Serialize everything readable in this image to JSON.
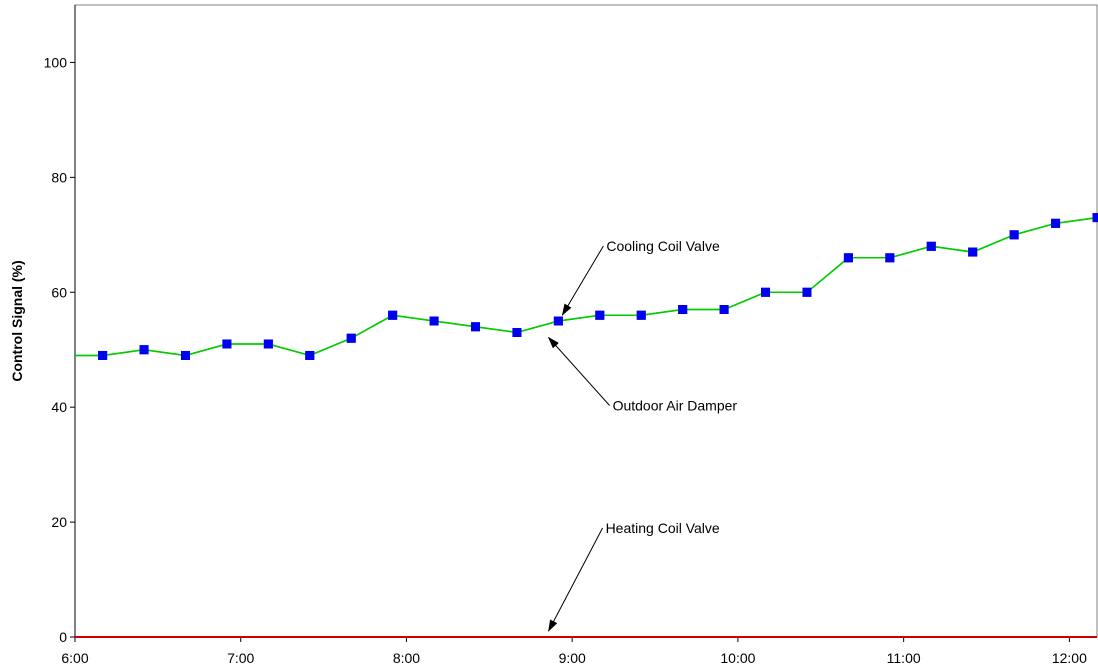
{
  "chart_data": {
    "type": "line",
    "title": "",
    "xlabel": "",
    "ylabel": "Control Signal (%)",
    "ylim": [
      0,
      110
    ],
    "yticks": [
      0,
      20,
      40,
      60,
      80,
      100
    ],
    "xlim": [
      "6:00",
      "12:10"
    ],
    "xticks": [
      "6:00",
      "7:00",
      "8:00",
      "9:00",
      "10:00",
      "11:00",
      "12:00"
    ],
    "grid": false,
    "legend": "none",
    "x": [
      "6:10",
      "6:25",
      "6:40",
      "6:55",
      "7:10",
      "7:25",
      "7:40",
      "7:55",
      "8:10",
      "8:25",
      "8:40",
      "8:55",
      "9:10",
      "9:25",
      "9:40",
      "9:55",
      "10:10",
      "10:25",
      "10:40",
      "10:55",
      "11:10",
      "11:25",
      "11:40",
      "11:55",
      "12:10"
    ],
    "series": [
      {
        "name": "Cooling Coil Valve",
        "color": "#00cc00",
        "marker": "square",
        "marker_color": "#0000ee",
        "line_start_value": 49,
        "values": [
          49,
          50,
          49,
          51,
          51,
          49,
          52,
          56,
          55,
          54,
          53,
          55,
          56,
          56,
          57,
          57,
          60,
          60,
          66,
          66,
          68,
          67,
          70,
          72,
          73
        ]
      },
      {
        "name": "Outdoor Air Damper",
        "color": "#00cc00",
        "marker": "square",
        "marker_color": "#0000ee",
        "line_start_value": 49,
        "values": [
          49,
          50,
          49,
          51,
          51,
          49,
          52,
          56,
          55,
          54,
          53,
          55,
          56,
          56,
          57,
          57,
          60,
          60,
          66,
          66,
          68,
          67,
          70,
          72,
          73
        ]
      },
      {
        "name": "Heating Coil Valve",
        "color": "#cc0000",
        "marker": "none",
        "values": [
          0,
          0,
          0,
          0,
          0,
          0,
          0,
          0,
          0,
          0,
          0,
          0,
          0,
          0,
          0,
          0,
          0,
          0,
          0,
          0,
          0,
          0,
          0,
          0,
          0
        ]
      }
    ],
    "annotations": [
      {
        "text": "Cooling Coil Valve",
        "target_x": "8:55",
        "target_y": 55,
        "placement": "above-right"
      },
      {
        "text": "Outdoor Air Damper",
        "target_x": "8:50",
        "target_y": 53,
        "placement": "below-right"
      },
      {
        "text": "Heating Coil Valve",
        "target_x": "8:50",
        "target_y": 0,
        "placement": "above-right"
      }
    ]
  }
}
